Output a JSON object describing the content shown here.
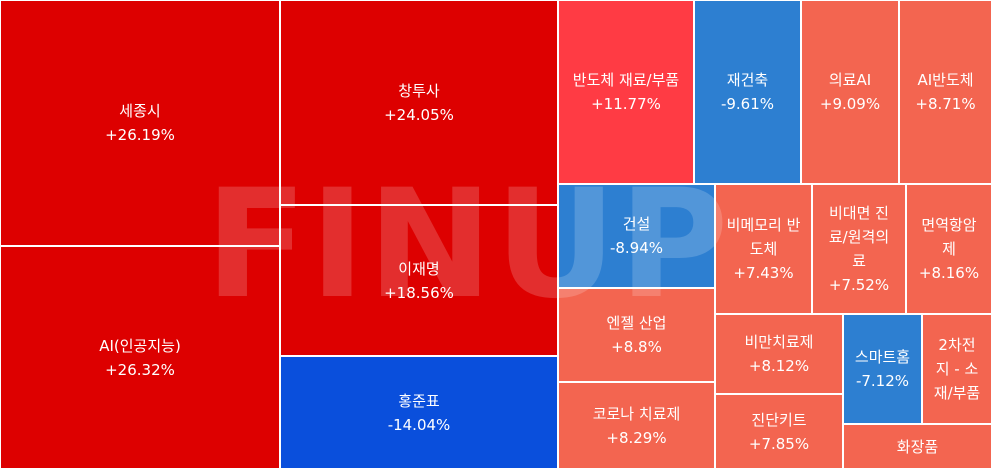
{
  "watermark": "FINUP",
  "colors": {
    "strong_up": "#dd0000",
    "up": "#ff3b44",
    "mild_up": "#f36550",
    "down": "#2d7fd1",
    "strong_down": "#0a4fdc"
  },
  "chart_data": {
    "type": "heatmap",
    "items": [
      {
        "name": "세종시",
        "change": "+26.19%",
        "value": 26.19
      },
      {
        "name": "AI(인공지능)",
        "change": "+26.32%",
        "value": 26.32
      },
      {
        "name": "창투사",
        "change": "+24.05%",
        "value": 24.05
      },
      {
        "name": "이재명",
        "change": "+18.56%",
        "value": 18.56
      },
      {
        "name": "홍준표",
        "change": "-14.04%",
        "value": -14.04
      },
      {
        "name": "반도체 재료/부품",
        "change": "+11.77%",
        "value": 11.77
      },
      {
        "name": "재건축",
        "change": "-9.61%",
        "value": -9.61
      },
      {
        "name": "의료AI",
        "change": "+9.09%",
        "value": 9.09
      },
      {
        "name": "AI반도체",
        "change": "+8.71%",
        "value": 8.71
      },
      {
        "name": "건설",
        "change": "-8.94%",
        "value": -8.94
      },
      {
        "name": "비메모리 반\n도체",
        "change": "+7.43%",
        "value": 7.43
      },
      {
        "name": "비대면 진\n료/원격의\n료",
        "change": "+7.52%",
        "value": 7.52
      },
      {
        "name": "면역항암\n제",
        "change": "+8.16%",
        "value": 8.16
      },
      {
        "name": "엔젤 산업",
        "change": "+8.8%",
        "value": 8.8
      },
      {
        "name": "비만치료제",
        "change": "+8.12%",
        "value": 8.12
      },
      {
        "name": "스마트홈",
        "change": "-7.12%",
        "value": -7.12
      },
      {
        "name": "2차전\n지 - 소\n재/부품",
        "change": "",
        "value": null
      },
      {
        "name": "코로나 치료제",
        "change": "+8.29%",
        "value": 8.29
      },
      {
        "name": "진단키트",
        "change": "+7.85%",
        "value": 7.85
      },
      {
        "name": "화장품",
        "change": "",
        "value": null
      }
    ]
  }
}
